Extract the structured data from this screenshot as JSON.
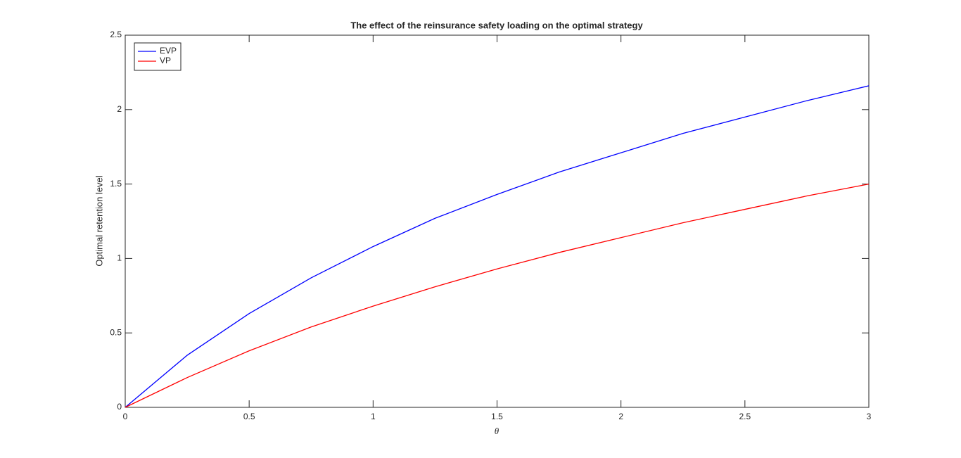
{
  "chart_data": {
    "type": "line",
    "title": "The effect of the reinsurance safety loading on the optimal strategy",
    "x_label": "θ",
    "y_label": "Optimal retention level",
    "x": [
      0,
      0.25,
      0.5,
      0.75,
      1,
      1.25,
      1.5,
      1.75,
      2,
      2.25,
      2.5,
      2.75,
      3
    ],
    "series": [
      {
        "name": "EVP",
        "color": "#0000ff",
        "values": [
          0,
          0.35,
          0.63,
          0.87,
          1.08,
          1.27,
          1.43,
          1.58,
          1.71,
          1.84,
          1.95,
          2.06,
          2.16
        ]
      },
      {
        "name": "VP",
        "color": "#ff0000",
        "values": [
          0,
          0.2,
          0.38,
          0.54,
          0.68,
          0.81,
          0.93,
          1.04,
          1.14,
          1.24,
          1.33,
          1.42,
          1.5
        ]
      }
    ],
    "xlim": [
      0,
      3
    ],
    "xticks": [
      0,
      0.5,
      1,
      1.5,
      2,
      2.5,
      3
    ],
    "ylim": [
      0,
      2.5
    ],
    "yticks": [
      0,
      0.5,
      1,
      1.5,
      2,
      2.5
    ],
    "grid": false,
    "legend": "upper-left"
  }
}
